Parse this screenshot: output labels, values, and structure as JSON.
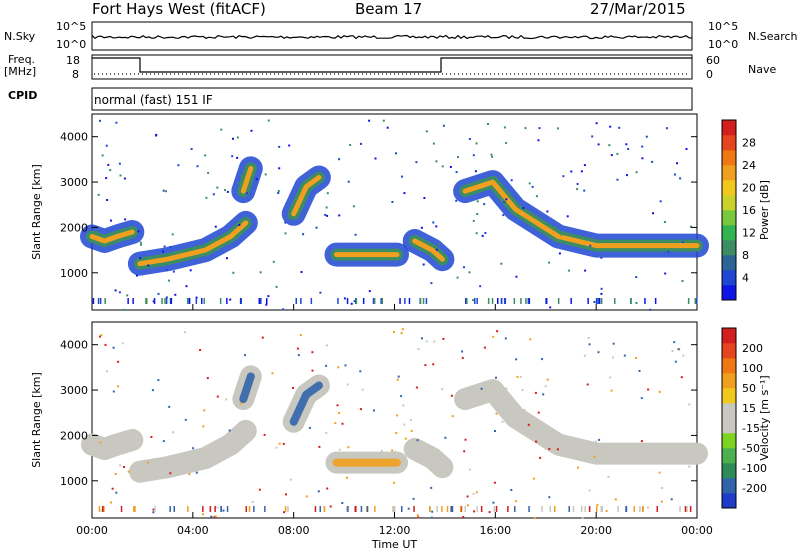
{
  "header": {
    "station": "Fort Hays West (fitACF)",
    "beam": "Beam 17",
    "date": "27/Mar/2015"
  },
  "strip_labels": {
    "nsky": "N.Sky",
    "nsky_top": "10^5",
    "nsky_bot": "10^0",
    "nsearch": "N.Search",
    "nsearch_top": "10^5",
    "nsearch_bot": "10^0",
    "freq": "Freq.",
    "freq_unit": "[MHz]",
    "freq_top": "18",
    "freq_bot": "8",
    "nave": "Nave",
    "nave_top": "60",
    "nave_bot": "0",
    "cpid": "CPID",
    "cpid_text": "normal (fast) 151 IF"
  },
  "colors": {
    "velocity_gray": "#c8c8c0",
    "freq_line": "#000000"
  },
  "chart_data": [
    {
      "type": "heatmap",
      "name": "power",
      "ylabel": "Slant Range [km]",
      "xlabel": "Time UT",
      "xlim": [
        0,
        24
      ],
      "ylim": [
        180,
        4500
      ],
      "xticks": [
        "00:00",
        "04:00",
        "08:00",
        "12:00",
        "16:00",
        "20:00",
        "00:00"
      ],
      "yticks": [
        1000,
        2000,
        3000,
        4000
      ],
      "colorbar": {
        "label": "Power [dB]",
        "ticks": [
          4,
          8,
          12,
          16,
          20,
          24,
          28
        ],
        "colors": [
          "#0f14e6",
          "#1e46d2",
          "#2c6496",
          "#3c8c64",
          "#32b450",
          "#78c83c",
          "#c8d228",
          "#f0c81e",
          "#f0a01e",
          "#f07814",
          "#e6461e",
          "#d21e1e"
        ]
      },
      "traces": [
        {
          "x": [
            0.0,
            0.5,
            1.0,
            1.6
          ],
          "y": [
            1800,
            1700,
            1800,
            1900
          ]
        },
        {
          "x": [
            1.9,
            3.0,
            4.5,
            5.5,
            6.1
          ],
          "y": [
            1200,
            1300,
            1500,
            1800,
            2100
          ]
        },
        {
          "x": [
            6.0,
            6.3
          ],
          "y": [
            2800,
            3300
          ]
        },
        {
          "x": [
            8.0,
            8.5,
            9.0
          ],
          "y": [
            2300,
            2900,
            3100
          ]
        },
        {
          "x": [
            9.7,
            11.0,
            12.1
          ],
          "y": [
            1400,
            1400,
            1400
          ]
        },
        {
          "x": [
            12.8,
            13.5,
            13.9
          ],
          "y": [
            1700,
            1500,
            1300
          ]
        },
        {
          "x": [
            14.8,
            15.9,
            16.8,
            18.5,
            20.0,
            22.0,
            24.0
          ],
          "y": [
            2800,
            3000,
            2400,
            1800,
            1600,
            1600,
            1600
          ]
        }
      ]
    },
    {
      "type": "heatmap",
      "name": "velocity",
      "ylabel": "Slant Range [km]",
      "xlabel": "Time UT",
      "xlim": [
        0,
        24
      ],
      "ylim": [
        180,
        4500
      ],
      "xticks": [
        "00:00",
        "04:00",
        "08:00",
        "12:00",
        "16:00",
        "20:00",
        "00:00"
      ],
      "yticks": [
        1000,
        2000,
        3000,
        4000
      ],
      "colorbar": {
        "label": "Velocity [m s⁻¹]",
        "ticks": [
          "200",
          "100",
          "50",
          "15",
          "-15",
          "-50",
          "-100",
          "-200"
        ],
        "colors": [
          "#1e3cc8",
          "#3264aa",
          "#2e8b57",
          "#4caf50",
          "#7ed321",
          "#c8c8c0",
          "#c8c8c0",
          "#f0c81e",
          "#f0a01e",
          "#f07814",
          "#e6461e",
          "#d21e1e"
        ]
      }
    }
  ]
}
